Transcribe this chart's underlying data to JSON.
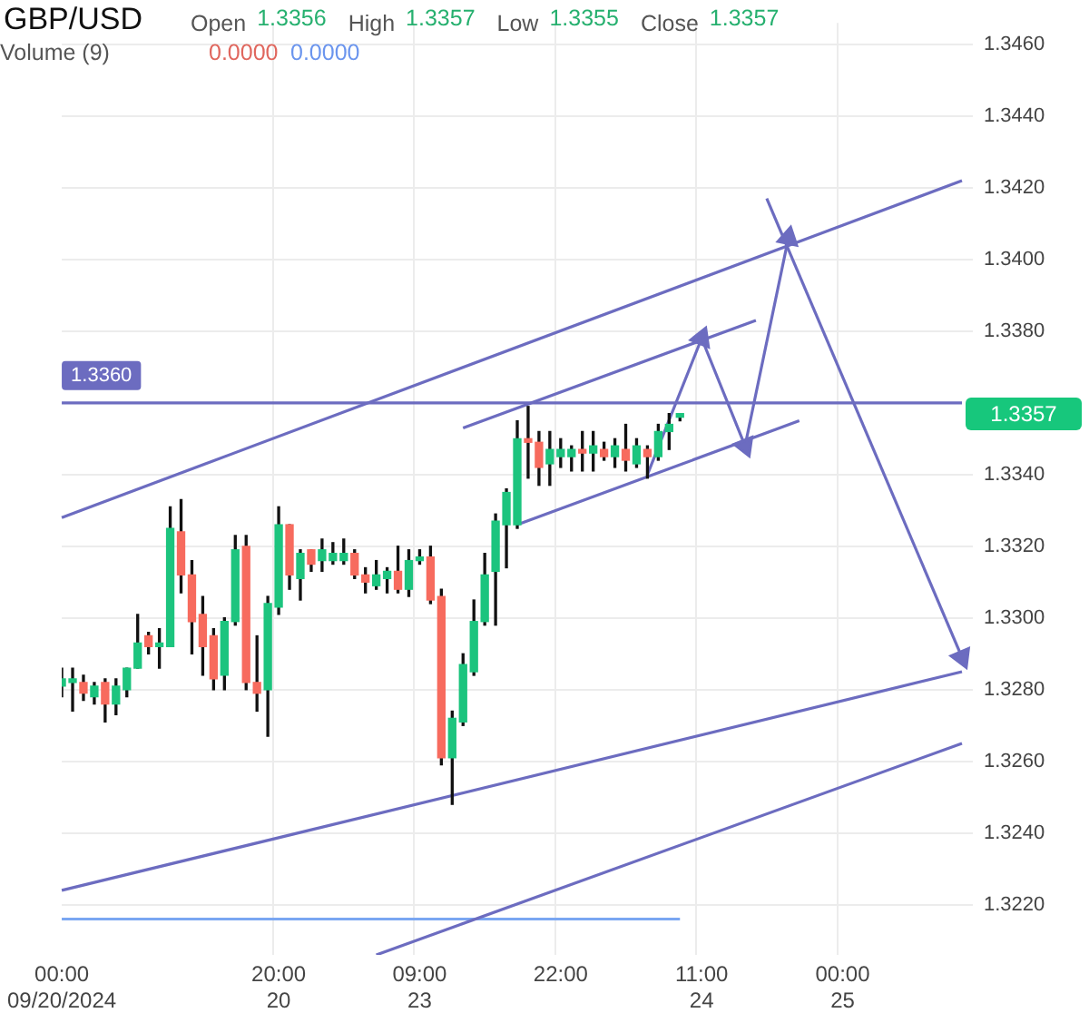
{
  "chart_data": {
    "type": "candlestick",
    "title": "GBP/USD",
    "subtitle": "Open 1.3356 High 1.3357 Low 1.3355 Close 1.3357",
    "annotations": [
      "Volume (9)",
      "0.0000",
      "0.0000",
      "1.3357"
    ],
    "categories": [
      "00:00\n09/20/2024",
      null,
      null,
      null,
      null,
      null,
      null,
      null,
      null,
      null,
      null,
      null,
      null,
      null,
      null,
      null,
      null,
      null,
      null,
      null,
      "20:00\n20",
      null,
      null,
      null,
      null,
      null,
      null,
      null,
      null,
      null,
      null,
      null,
      null,
      "09:00\n23",
      null,
      null,
      null,
      null,
      null,
      null,
      null,
      null,
      null,
      null,
      null,
      null,
      "22:00",
      null,
      null,
      null,
      null,
      null,
      null,
      null,
      null,
      null,
      null,
      null,
      null,
      "11:00\n24",
      null,
      null,
      null,
      null,
      null,
      null,
      null,
      null,
      null,
      null,
      null,
      null,
      "00:00\n25",
      null,
      null,
      null,
      null,
      null,
      null,
      null,
      null,
      null,
      null,
      null
    ],
    "ohlc": [
      [
        1.3281,
        1.3286,
        1.3278,
        1.3283
      ],
      [
        1.3282,
        1.3286,
        1.3274,
        1.3283
      ],
      [
        1.3282,
        1.3284,
        1.3277,
        1.3279
      ],
      [
        1.3278,
        1.3282,
        1.3276,
        1.3281
      ],
      [
        1.3282,
        1.3283,
        1.3271,
        1.3276
      ],
      [
        1.3276,
        1.3283,
        1.3273,
        1.3281
      ],
      [
        1.328,
        1.3286,
        1.3278,
        1.3286
      ],
      [
        1.3286,
        1.3301,
        1.3286,
        1.3293
      ],
      [
        1.3295,
        1.3296,
        1.329,
        1.3292
      ],
      [
        1.3292,
        1.3297,
        1.3286,
        1.3293
      ],
      [
        1.3292,
        1.3331,
        1.3292,
        1.3325
      ],
      [
        1.3324,
        1.3333,
        1.3307,
        1.3312
      ],
      [
        1.3312,
        1.3316,
        1.329,
        1.3299
      ],
      [
        1.3301,
        1.3306,
        1.3284,
        1.3292
      ],
      [
        1.3295,
        1.3297,
        1.328,
        1.3283
      ],
      [
        1.3284,
        1.33,
        1.328,
        1.3299
      ],
      [
        1.3299,
        1.3323,
        1.3298,
        1.3319
      ],
      [
        1.332,
        1.3323,
        1.328,
        1.3282
      ],
      [
        1.3282,
        1.3295,
        1.3274,
        1.3279
      ],
      [
        1.328,
        1.3306,
        1.3267,
        1.3304
      ],
      [
        1.3303,
        1.3331,
        1.3301,
        1.3326
      ],
      [
        1.3326,
        1.3326,
        1.3308,
        1.3312
      ],
      [
        1.3311,
        1.3319,
        1.3305,
        1.3318
      ],
      [
        1.3319,
        1.3319,
        1.3313,
        1.3315
      ],
      [
        1.3316,
        1.3322,
        1.3313,
        1.3319
      ],
      [
        1.3316,
        1.3321,
        1.3315,
        1.3318
      ],
      [
        1.3316,
        1.3322,
        1.3315,
        1.3318
      ],
      [
        1.3318,
        1.3319,
        1.3311,
        1.3312
      ],
      [
        1.3312,
        1.3314,
        1.3307,
        1.331
      ],
      [
        1.3309,
        1.3316,
        1.3308,
        1.3312
      ],
      [
        1.3311,
        1.3314,
        1.3307,
        1.3313
      ],
      [
        1.3313,
        1.332,
        1.3307,
        1.3308
      ],
      [
        1.3308,
        1.3319,
        1.3306,
        1.3316
      ],
      [
        1.3316,
        1.3319,
        1.3315,
        1.3317
      ],
      [
        1.3317,
        1.332,
        1.3304,
        1.3305
      ],
      [
        1.3306,
        1.3308,
        1.3259,
        1.3261
      ],
      [
        1.3261,
        1.3274,
        1.3248,
        1.3272
      ],
      [
        1.3271,
        1.329,
        1.327,
        1.3287
      ],
      [
        1.3285,
        1.3305,
        1.3284,
        1.3299
      ],
      [
        1.3299,
        1.3318,
        1.3298,
        1.3312
      ],
      [
        1.3313,
        1.3329,
        1.3298,
        1.3327
      ],
      [
        1.3326,
        1.3336,
        1.3314,
        1.3335
      ],
      [
        1.3326,
        1.3355,
        1.3325,
        1.335
      ],
      [
        1.335,
        1.3359,
        1.3339,
        1.3349
      ],
      [
        1.3349,
        1.3352,
        1.3337,
        1.3342
      ],
      [
        1.3343,
        1.3352,
        1.3337,
        1.3347
      ],
      [
        1.3345,
        1.335,
        1.3342,
        1.3347
      ],
      [
        1.3345,
        1.3348,
        1.3341,
        1.3347
      ],
      [
        1.3347,
        1.3352,
        1.3341,
        1.3346
      ],
      [
        1.3346,
        1.3352,
        1.3341,
        1.3348
      ],
      [
        1.3347,
        1.3349,
        1.3344,
        1.3345
      ],
      [
        1.3345,
        1.335,
        1.3342,
        1.3348
      ],
      [
        1.3347,
        1.3354,
        1.3341,
        1.3344
      ],
      [
        1.3343,
        1.335,
        1.3342,
        1.3348
      ],
      [
        1.3347,
        1.3348,
        1.3339,
        1.3345
      ],
      [
        1.3345,
        1.3354,
        1.3344,
        1.3352
      ],
      [
        1.3352,
        1.3357,
        1.3347,
        1.3354
      ],
      [
        1.3356,
        1.3357,
        1.3355,
        1.3357
      ],
      null,
      null,
      null,
      null,
      null,
      null,
      null,
      null,
      null,
      null,
      null,
      null,
      null,
      null,
      null,
      null,
      null,
      null,
      null,
      null,
      null,
      null,
      null,
      null,
      null,
      null
    ],
    "colors": [
      "#1cc47e",
      "#1cc47e",
      "#f76b5e",
      "#1cc47e",
      "#f76b5e",
      "#1cc47e",
      "#1cc47e",
      "#1cc47e",
      "#f76b5e",
      "#1cc47e",
      "#1cc47e",
      "#f76b5e",
      "#f76b5e",
      "#f76b5e",
      "#f76b5e",
      "#1cc47e",
      "#1cc47e",
      "#f76b5e",
      "#f76b5e",
      "#1cc47e",
      "#1cc47e",
      "#f76b5e",
      "#1cc47e",
      "#f76b5e",
      "#1cc47e",
      "#1cc47e",
      "#1cc47e",
      "#f76b5e",
      "#f76b5e",
      "#1cc47e",
      "#1cc47e",
      "#f76b5e",
      "#1cc47e",
      "#1cc47e",
      "#f76b5e",
      "#f76b5e",
      "#1cc47e",
      "#1cc47e",
      "#1cc47e",
      "#1cc47e",
      "#1cc47e",
      "#1cc47e",
      "#1cc47e",
      "#f76b5e",
      "#f76b5e",
      "#1cc47e",
      "#1cc47e",
      "#1cc47e",
      "#f76b5e",
      "#1cc47e",
      "#f76b5e",
      "#1cc47e",
      "#f76b5e",
      "#1cc47e",
      "#f76b5e",
      "#1cc47e",
      "#1cc47e",
      "#1cc47e",
      null,
      null,
      null,
      null,
      null,
      null,
      null,
      null,
      null,
      null,
      null,
      null,
      null,
      null,
      null,
      null,
      null,
      null,
      null,
      null,
      null,
      null,
      null,
      null,
      null,
      null
    ],
    "series": [
      {
        "type": "line",
        "color": "#6c6cc0",
        "values": [
          1.3328,
          null,
          null,
          null,
          null,
          null,
          null,
          null,
          null,
          null,
          null,
          null,
          null,
          null,
          null,
          null,
          null,
          null,
          null,
          null,
          null,
          null,
          null,
          null,
          null,
          null,
          null,
          null,
          null,
          null,
          null,
          null,
          null,
          null,
          null,
          null,
          null,
          null,
          null,
          null,
          null,
          null,
          null,
          null,
          null,
          null,
          null,
          null,
          null,
          null,
          null,
          null,
          null,
          null,
          null,
          null,
          null,
          null,
          null,
          null,
          null,
          null,
          null,
          null,
          null,
          null,
          null,
          null,
          null,
          null,
          null,
          null,
          null,
          null,
          null,
          null,
          null,
          null,
          null,
          null,
          null,
          null,
          null,
          1.3422
        ]
      },
      {
        "type": "line",
        "color": "#6c6cc0",
        "values": [
          1.3224,
          null,
          null,
          null,
          null,
          null,
          null,
          null,
          null,
          null,
          null,
          null,
          null,
          null,
          null,
          null,
          null,
          null,
          null,
          null,
          null,
          null,
          null,
          null,
          null,
          null,
          null,
          null,
          null,
          null,
          null,
          null,
          null,
          null,
          null,
          null,
          null,
          null,
          null,
          null,
          null,
          null,
          null,
          null,
          null,
          null,
          null,
          null,
          null,
          null,
          null,
          null,
          null,
          null,
          null,
          null,
          null,
          null,
          null,
          null,
          null,
          null,
          null,
          null,
          null,
          null,
          null,
          null,
          null,
          null,
          null,
          null,
          null,
          null,
          null,
          null,
          null,
          null,
          null,
          null,
          null,
          null,
          null,
          1.3285
        ]
      },
      {
        "type": "line",
        "color": "#6c6cc0",
        "values": [
          null,
          null,
          null,
          null,
          null,
          null,
          null,
          null,
          null,
          null,
          null,
          null,
          null,
          null,
          null,
          null,
          null,
          null,
          null,
          null,
          null,
          null,
          null,
          null,
          null,
          null,
          null,
          null,
          null,
          1.3206,
          null,
          null,
          null,
          null,
          null,
          null,
          null,
          null,
          null,
          null,
          null,
          null,
          null,
          null,
          null,
          null,
          null,
          null,
          null,
          null,
          null,
          null,
          null,
          null,
          null,
          null,
          null,
          null,
          null,
          null,
          null,
          null,
          null,
          null,
          null,
          null,
          null,
          null,
          null,
          null,
          null,
          null,
          null,
          null,
          null,
          null,
          null,
          null,
          null,
          null,
          null,
          null,
          null,
          1.3265
        ]
      },
      {
        "type": "line",
        "color": "#6c6cc0",
        "values": [
          null,
          null,
          null,
          null,
          null,
          null,
          null,
          null,
          null,
          null,
          null,
          null,
          null,
          null,
          null,
          null,
          null,
          null,
          null,
          null,
          null,
          null,
          null,
          null,
          null,
          null,
          null,
          null,
          null,
          null,
          null,
          null,
          null,
          null,
          null,
          null,
          null,
          1.3353,
          null,
          null,
          null,
          null,
          null,
          null,
          null,
          null,
          null,
          null,
          null,
          null,
          null,
          null,
          null,
          null,
          null,
          null,
          null,
          null,
          null,
          null,
          null,
          null,
          null,
          null,
          1.3383,
          null,
          null,
          null,
          null,
          null,
          null,
          null,
          null,
          null,
          null,
          null,
          null,
          null,
          null,
          null,
          null,
          null,
          null,
          null
        ]
      },
      {
        "type": "line",
        "color": "#6c6cc0",
        "values": [
          null,
          null,
          null,
          null,
          null,
          null,
          null,
          null,
          null,
          null,
          null,
          null,
          null,
          null,
          null,
          null,
          null,
          null,
          null,
          null,
          null,
          null,
          null,
          null,
          null,
          null,
          null,
          null,
          null,
          null,
          null,
          null,
          null,
          null,
          null,
          null,
          null,
          null,
          null,
          null,
          null,
          null,
          1.3326,
          null,
          null,
          null,
          null,
          null,
          null,
          null,
          null,
          null,
          null,
          null,
          null,
          null,
          null,
          null,
          null,
          null,
          null,
          null,
          null,
          null,
          null,
          null,
          null,
          null,
          1.3355,
          null,
          null,
          null,
          null,
          null,
          null,
          null,
          null,
          null,
          null,
          null,
          null,
          null,
          null,
          null
        ]
      },
      {
        "type": "line",
        "color": "#6c6cc0",
        "marker": "triangle",
        "values": [
          null,
          null,
          null,
          null,
          null,
          null,
          null,
          null,
          null,
          null,
          null,
          null,
          null,
          null,
          null,
          null,
          null,
          null,
          null,
          null,
          null,
          null,
          null,
          null,
          null,
          null,
          null,
          null,
          null,
          null,
          null,
          null,
          null,
          null,
          null,
          null,
          null,
          null,
          null,
          null,
          null,
          null,
          null,
          null,
          null,
          null,
          null,
          null,
          null,
          null,
          null,
          null,
          null,
          null,
          1.334,
          null,
          null,
          null,
          null,
          1.3378,
          null,
          null,
          null,
          1.3348,
          null,
          null,
          null,
          1.3406,
          null,
          null,
          null,
          null,
          null,
          null,
          null,
          null,
          null,
          null,
          null,
          null,
          null,
          null,
          null,
          null
        ]
      },
      {
        "type": "line",
        "color": "#6c6cc0",
        "marker": "triangle",
        "values": [
          null,
          null,
          null,
          null,
          null,
          null,
          null,
          null,
          null,
          null,
          null,
          null,
          null,
          null,
          null,
          null,
          null,
          null,
          null,
          null,
          null,
          null,
          null,
          null,
          null,
          null,
          null,
          null,
          null,
          null,
          null,
          null,
          null,
          null,
          null,
          null,
          null,
          null,
          null,
          null,
          null,
          null,
          null,
          null,
          null,
          null,
          null,
          null,
          null,
          null,
          null,
          null,
          null,
          null,
          null,
          null,
          null,
          null,
          null,
          null,
          null,
          null,
          null,
          null,
          null,
          1.3417,
          null,
          null,
          null,
          null,
          null,
          null,
          null,
          null,
          null,
          null,
          null,
          null,
          null,
          null,
          null,
          null,
          null,
          1.3289
        ]
      },
      {
        "type": "line",
        "color": "#7aa6f2",
        "values": [
          1.3216,
          null,
          null,
          null,
          null,
          null,
          null,
          null,
          null,
          null,
          null,
          null,
          null,
          null,
          null,
          null,
          null,
          null,
          null,
          null,
          null,
          null,
          null,
          null,
          null,
          null,
          null,
          null,
          null,
          null,
          null,
          null,
          null,
          null,
          null,
          null,
          null,
          null,
          null,
          null,
          null,
          null,
          null,
          null,
          null,
          null,
          null,
          null,
          null,
          null,
          null,
          null,
          null,
          null,
          null,
          null,
          null,
          1.3216,
          null,
          null,
          null,
          null,
          null,
          null,
          null,
          null,
          null,
          null,
          null,
          null,
          null,
          null,
          null,
          null,
          null,
          null,
          null,
          null,
          null,
          null,
          null,
          null,
          null,
          null
        ]
      }
    ],
    "ref_lines": [
      {
        "axis": "y",
        "value": 1.336,
        "label": "1.3360",
        "color": "#6c6cc0"
      }
    ],
    "ylim": [
      1.3206,
      1.3466
    ],
    "yticks": [
      {
        "value": 1.322,
        "label": "1.3220"
      },
      {
        "value": 1.324,
        "label": "1.3240"
      },
      {
        "value": 1.326,
        "label": "1.3260"
      },
      {
        "value": 1.328,
        "label": "1.3280"
      },
      {
        "value": 1.33,
        "label": "1.3300"
      },
      {
        "value": 1.332,
        "label": "1.3320"
      },
      {
        "value": 1.334,
        "label": "1.3340"
      },
      {
        "value": 1.336,
        "label": null
      },
      {
        "value": 1.338,
        "label": "1.3380"
      },
      {
        "value": 1.34,
        "label": "1.3400"
      },
      {
        "value": 1.342,
        "label": "1.3420"
      },
      {
        "value": 1.344,
        "label": "1.3440"
      },
      {
        "value": 1.346,
        "label": "1.3460"
      }
    ],
    "grid": true
  }
}
